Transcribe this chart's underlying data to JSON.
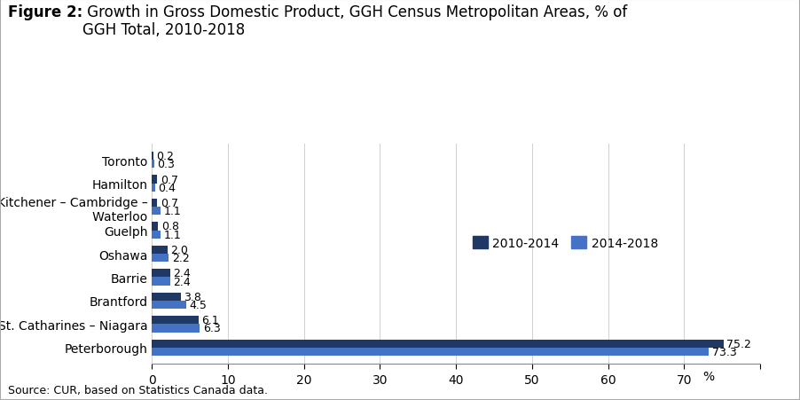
{
  "title_bold": "Figure 2:",
  "title_rest": " Growth in Gross Domestic Product, GGH Census Metropolitan Areas, % of\nGGH Total, 2010-2018",
  "categories": [
    "Toronto",
    "Hamilton",
    "Kitchener – Cambridge –\n   Waterloo",
    "Guelph",
    "Oshawa",
    "Barrie",
    "Brantford",
    "St. Catharines – Niagara",
    "Peterborough"
  ],
  "values_2010_2014": [
    75.2,
    6.1,
    3.8,
    2.4,
    2.0,
    0.8,
    0.7,
    0.7,
    0.2
  ],
  "values_2014_2018": [
    73.3,
    6.3,
    4.5,
    2.4,
    2.2,
    1.1,
    1.1,
    0.4,
    0.3
  ],
  "color_2010_2014": "#1F3864",
  "color_2014_2018": "#4472C4",
  "xlim": [
    0,
    80
  ],
  "xticks": [
    0,
    10,
    20,
    30,
    40,
    50,
    60,
    70,
    80
  ],
  "xlabel": "%",
  "source": "Source: CUR, based on Statistics Canada data.",
  "legend_labels": [
    "2010-2014",
    "2014-2018"
  ],
  "background_color": "#ffffff",
  "bar_height": 0.35,
  "title_fontsize": 12,
  "axis_fontsize": 10,
  "label_fontsize": 9,
  "source_fontsize": 9
}
